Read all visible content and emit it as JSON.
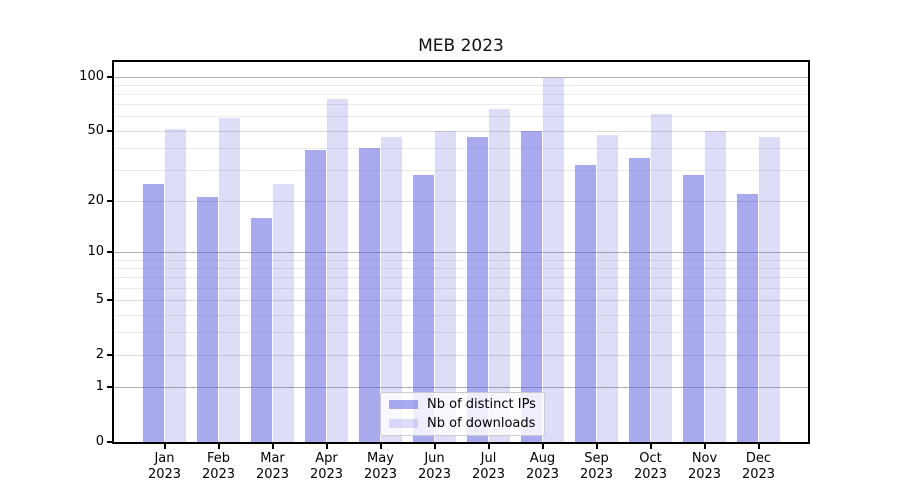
{
  "chart_data": {
    "type": "bar",
    "title": "MEB 2023",
    "categories": [
      "Jan",
      "Feb",
      "Mar",
      "Apr",
      "May",
      "Jun",
      "Jul",
      "Aug",
      "Sep",
      "Oct",
      "Nov",
      "Dec"
    ],
    "year": "2023",
    "series": [
      {
        "name": "Nb of distinct IPs",
        "color": "rgba(84,84,220,0.5)",
        "values": [
          25,
          21,
          16,
          39,
          40,
          28,
          46,
          50,
          32,
          35,
          28,
          22
        ]
      },
      {
        "name": "Nb of downloads",
        "color": "rgba(84,84,220,0.2)",
        "values": [
          51,
          59,
          25,
          75,
          46,
          50,
          66,
          98,
          47,
          62,
          50,
          46
        ]
      }
    ],
    "y_scale": "symlog(ln(1+y))",
    "ylim": [
      0,
      120
    ],
    "y_ticks": [
      0,
      1,
      2,
      5,
      10,
      20,
      50,
      100
    ],
    "y_mid_gridlines": [
      2,
      5,
      20,
      50
    ],
    "y_minor_gridlines": [
      3,
      4,
      6,
      7,
      8,
      9,
      30,
      40,
      60,
      70,
      80,
      90
    ],
    "y_major_gridlines": [
      1,
      10,
      100
    ],
    "grid": true,
    "legend_position": "lower center",
    "colors": {
      "bar_dark": "#aaaaee",
      "bar_light": "#dcdcf8",
      "grid_major": "#b0b0b0"
    }
  }
}
